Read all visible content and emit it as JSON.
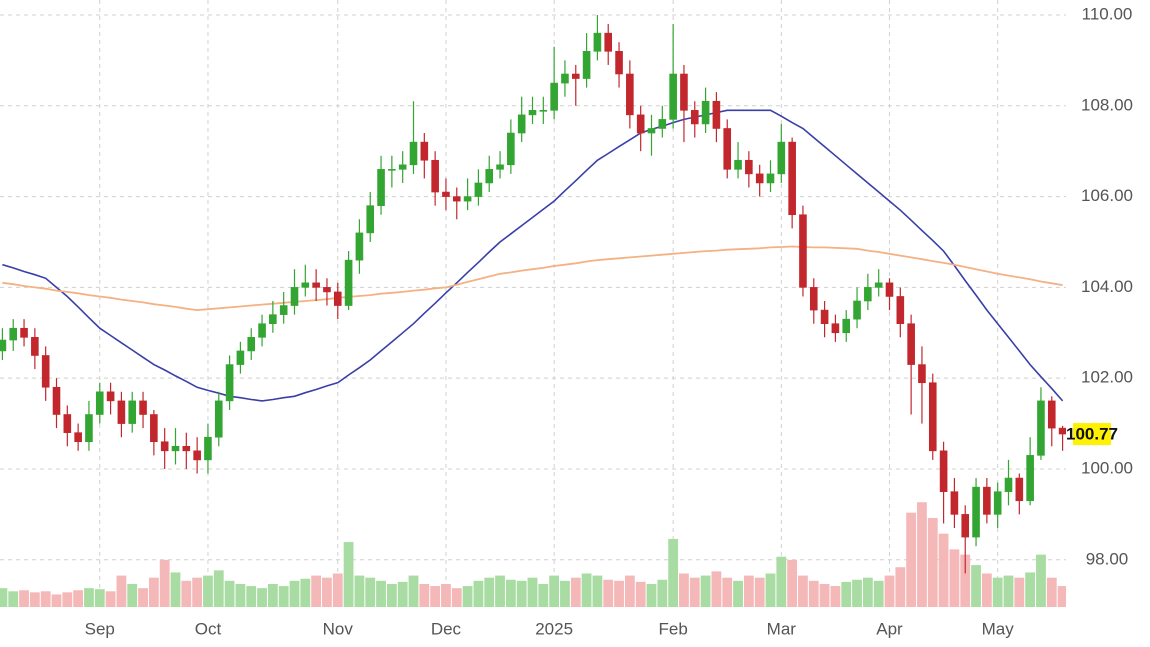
{
  "chart_data": {
    "type": "candlestick",
    "categories": [
      null,
      null,
      null,
      null,
      null,
      null,
      null,
      null,
      null,
      "Sep",
      null,
      null,
      null,
      null,
      null,
      null,
      null,
      null,
      null,
      "Oct",
      null,
      null,
      null,
      null,
      null,
      null,
      null,
      null,
      null,
      null,
      null,
      "Nov",
      null,
      null,
      null,
      null,
      null,
      null,
      null,
      null,
      null,
      "Dec",
      null,
      null,
      null,
      null,
      null,
      null,
      null,
      null,
      null,
      "2025",
      null,
      null,
      null,
      null,
      null,
      null,
      null,
      null,
      null,
      null,
      "Feb",
      null,
      null,
      null,
      null,
      null,
      null,
      null,
      null,
      null,
      "Mar",
      null,
      null,
      null,
      null,
      null,
      null,
      null,
      null,
      null,
      "Apr",
      null,
      null,
      null,
      null,
      null,
      null,
      null,
      null,
      null,
      "May",
      null,
      null,
      null,
      null,
      null,
      null
    ],
    "open": [
      102.6,
      102.84,
      103.1,
      102.9,
      102.5,
      101.8,
      101.2,
      100.8,
      100.6,
      101.2,
      101.7,
      101.5,
      101.0,
      101.5,
      101.2,
      100.6,
      100.4,
      100.5,
      100.4,
      100.2,
      100.7,
      101.5,
      102.3,
      102.6,
      102.9,
      103.2,
      103.4,
      103.6,
      104.0,
      104.1,
      104.0,
      103.9,
      103.6,
      104.6,
      105.2,
      105.8,
      106.6,
      106.6,
      106.7,
      107.2,
      106.8,
      106.1,
      106.0,
      105.9,
      106.0,
      106.3,
      106.6,
      106.7,
      107.4,
      107.8,
      107.9,
      107.9,
      108.5,
      108.7,
      108.6,
      109.2,
      109.6,
      109.2,
      108.7,
      107.8,
      107.4,
      107.5,
      107.7,
      108.7,
      107.9,
      107.6,
      108.1,
      107.5,
      106.6,
      106.8,
      106.5,
      106.3,
      106.5,
      107.2,
      105.6,
      104.0,
      103.5,
      103.2,
      103.0,
      103.3,
      103.7,
      104.0,
      104.1,
      103.8,
      103.2,
      102.3,
      101.9,
      100.4,
      99.5,
      99.0,
      98.5,
      99.6,
      99.0,
      99.5,
      99.8,
      99.3,
      100.3,
      101.5,
      100.9
    ],
    "high": [
      103.1,
      103.3,
      103.3,
      103.1,
      102.7,
      102.0,
      101.4,
      101.0,
      101.5,
      101.9,
      101.9,
      101.7,
      101.7,
      101.7,
      101.3,
      100.9,
      100.9,
      100.8,
      100.7,
      101.0,
      101.7,
      102.5,
      102.8,
      103.1,
      103.4,
      103.7,
      103.9,
      104.4,
      104.5,
      104.4,
      104.2,
      104.1,
      104.8,
      105.5,
      106.1,
      106.9,
      106.9,
      107.0,
      108.1,
      107.4,
      107.0,
      106.4,
      106.2,
      106.4,
      106.6,
      106.9,
      107.0,
      107.7,
      108.2,
      108.2,
      108.2,
      109.3,
      109.0,
      108.9,
      109.6,
      110.0,
      109.8,
      109.4,
      109.0,
      108.0,
      107.8,
      108.0,
      109.8,
      108.9,
      108.1,
      108.4,
      108.3,
      107.7,
      107.2,
      107.0,
      106.7,
      106.8,
      107.6,
      107.3,
      105.8,
      104.2,
      103.7,
      103.4,
      103.5,
      104.0,
      104.3,
      104.4,
      104.2,
      104.0,
      103.4,
      102.7,
      102.1,
      100.6,
      99.8,
      99.2,
      99.8,
      99.8,
      99.7,
      100.2,
      99.9,
      100.7,
      101.8,
      101.6,
      100.95
    ],
    "low": [
      102.4,
      102.6,
      102.7,
      102.2,
      101.5,
      100.9,
      100.5,
      100.4,
      100.4,
      101.0,
      101.2,
      100.7,
      100.8,
      100.9,
      100.3,
      100.0,
      100.1,
      100.0,
      99.9,
      99.9,
      100.5,
      101.3,
      102.1,
      102.4,
      102.7,
      103.0,
      103.2,
      103.4,
      103.8,
      103.7,
      103.6,
      103.3,
      103.5,
      104.3,
      105.0,
      105.6,
      106.2,
      106.3,
      106.5,
      106.4,
      105.8,
      105.7,
      105.5,
      105.7,
      105.8,
      106.1,
      106.4,
      106.5,
      107.2,
      107.6,
      107.6,
      107.7,
      108.2,
      108.0,
      108.4,
      109.0,
      108.9,
      108.4,
      107.5,
      107.0,
      106.9,
      107.3,
      107.5,
      107.2,
      107.3,
      107.4,
      107.2,
      106.4,
      106.4,
      106.2,
      106.0,
      106.1,
      106.3,
      105.3,
      103.8,
      103.2,
      102.9,
      102.8,
      102.8,
      103.1,
      103.5,
      103.8,
      103.5,
      102.9,
      101.2,
      101.0,
      100.2,
      98.8,
      98.7,
      97.7,
      98.3,
      98.8,
      98.7,
      99.2,
      99.0,
      99.2,
      100.2,
      100.5,
      100.4
    ],
    "close": [
      102.84,
      103.1,
      102.9,
      102.5,
      101.8,
      101.2,
      100.8,
      100.6,
      101.2,
      101.7,
      101.5,
      101.0,
      101.5,
      101.2,
      100.6,
      100.4,
      100.5,
      100.4,
      100.2,
      100.7,
      101.5,
      102.3,
      102.6,
      102.9,
      103.2,
      103.4,
      103.6,
      104.0,
      104.1,
      104.0,
      103.9,
      103.6,
      104.6,
      105.2,
      105.8,
      106.6,
      106.6,
      106.7,
      107.2,
      106.8,
      106.1,
      106.0,
      105.9,
      106.0,
      106.3,
      106.6,
      106.7,
      107.4,
      107.8,
      107.9,
      107.9,
      108.5,
      108.7,
      108.6,
      109.2,
      109.6,
      109.2,
      108.7,
      107.8,
      107.4,
      107.5,
      107.7,
      108.7,
      107.9,
      107.6,
      108.1,
      107.5,
      106.6,
      106.8,
      106.5,
      106.3,
      106.5,
      107.2,
      105.6,
      104.0,
      103.5,
      103.2,
      103.0,
      103.3,
      103.7,
      104.0,
      104.1,
      103.8,
      103.2,
      102.3,
      101.9,
      100.4,
      99.5,
      99.0,
      98.5,
      99.6,
      99.0,
      99.5,
      99.8,
      99.3,
      100.3,
      101.5,
      100.9,
      100.77
    ],
    "volume": [
      18,
      15,
      16,
      14,
      15,
      12,
      14,
      16,
      18,
      17,
      15,
      30,
      22,
      18,
      28,
      45,
      33,
      25,
      28,
      30,
      35,
      25,
      22,
      20,
      18,
      22,
      20,
      25,
      27,
      30,
      28,
      32,
      62,
      30,
      28,
      25,
      22,
      24,
      30,
      22,
      20,
      22,
      18,
      20,
      25,
      28,
      30,
      26,
      25,
      28,
      22,
      30,
      25,
      28,
      32,
      30,
      26,
      25,
      30,
      24,
      22,
      26,
      65,
      32,
      28,
      30,
      34,
      28,
      25,
      30,
      28,
      32,
      48,
      45,
      30,
      25,
      22,
      20,
      24,
      26,
      28,
      25,
      30,
      38,
      90,
      100,
      85,
      70,
      55,
      50,
      40,
      32,
      28,
      30,
      28,
      33,
      50,
      28,
      20
    ],
    "vlim": [
      0,
      105
    ],
    "up_color": "#33a532",
    "down_color": "#c1272d",
    "volume_up_color": "#a9dca3",
    "volume_down_color": "#f5b8b8",
    "moving_averages": [
      {
        "color": "#3a3fa8",
        "values": [
          104.5,
          104.43,
          104.35,
          104.28,
          104.2,
          104.0,
          103.8,
          103.57,
          103.33,
          103.1,
          102.94,
          102.78,
          102.62,
          102.46,
          102.3,
          102.18,
          102.05,
          101.93,
          101.8,
          101.73,
          101.67,
          101.6,
          101.57,
          101.53,
          101.5,
          101.53,
          101.57,
          101.6,
          101.68,
          101.75,
          101.83,
          101.9,
          102.07,
          102.23,
          102.4,
          102.6,
          102.8,
          103.0,
          103.2,
          103.43,
          103.65,
          103.88,
          104.1,
          104.33,
          104.55,
          104.78,
          105.0,
          105.18,
          105.36,
          105.54,
          105.72,
          105.9,
          106.13,
          106.35,
          106.58,
          106.8,
          106.95,
          107.1,
          107.25,
          107.4,
          107.48,
          107.55,
          107.63,
          107.7,
          107.75,
          107.8,
          107.85,
          107.9,
          107.9,
          107.9,
          107.9,
          107.9,
          107.77,
          107.63,
          107.5,
          107.3,
          107.1,
          106.9,
          106.7,
          106.5,
          106.3,
          106.1,
          105.9,
          105.7,
          105.48,
          105.25,
          105.03,
          104.8,
          104.48,
          104.15,
          103.83,
          103.5,
          103.2,
          102.9,
          102.6,
          102.3,
          102.03,
          101.77,
          101.5
        ]
      },
      {
        "color": "#f4b183",
        "values": [
          104.1,
          104.07,
          104.03,
          104.0,
          103.97,
          103.93,
          103.9,
          103.87,
          103.83,
          103.8,
          103.77,
          103.73,
          103.7,
          103.67,
          103.63,
          103.6,
          103.57,
          103.53,
          103.5,
          103.52,
          103.54,
          103.56,
          103.58,
          103.6,
          103.62,
          103.64,
          103.66,
          103.68,
          103.7,
          103.72,
          103.74,
          103.77,
          103.79,
          103.81,
          103.83,
          103.86,
          103.88,
          103.9,
          103.93,
          103.95,
          103.98,
          104.0,
          104.06,
          104.12,
          104.18,
          104.24,
          104.3,
          104.33,
          104.37,
          104.4,
          104.43,
          104.47,
          104.5,
          104.53,
          104.57,
          104.6,
          104.62,
          104.64,
          104.66,
          104.68,
          104.7,
          104.72,
          104.74,
          104.76,
          104.78,
          104.8,
          104.81,
          104.83,
          104.84,
          104.85,
          104.86,
          104.88,
          104.89,
          104.9,
          104.89,
          104.88,
          104.88,
          104.87,
          104.86,
          104.85,
          104.81,
          104.78,
          104.74,
          104.7,
          104.66,
          104.62,
          104.58,
          104.54,
          104.5,
          104.45,
          104.4,
          104.35,
          104.3,
          104.26,
          104.22,
          104.18,
          104.13,
          104.09,
          104.05
        ]
      }
    ],
    "ylim": [
      96.96,
      110.33
    ],
    "yticks": [
      {
        "value": 98,
        "label": "98.00"
      },
      {
        "value": 100,
        "label": "100.00"
      },
      {
        "value": 102,
        "label": "102.00"
      },
      {
        "value": 104,
        "label": "104.00"
      },
      {
        "value": 106,
        "label": "106.00"
      },
      {
        "value": 108,
        "label": "108.00"
      },
      {
        "value": 110,
        "label": "110.00"
      }
    ],
    "last_price": 100.77,
    "last_price_color": "#fff200",
    "grid": true
  }
}
